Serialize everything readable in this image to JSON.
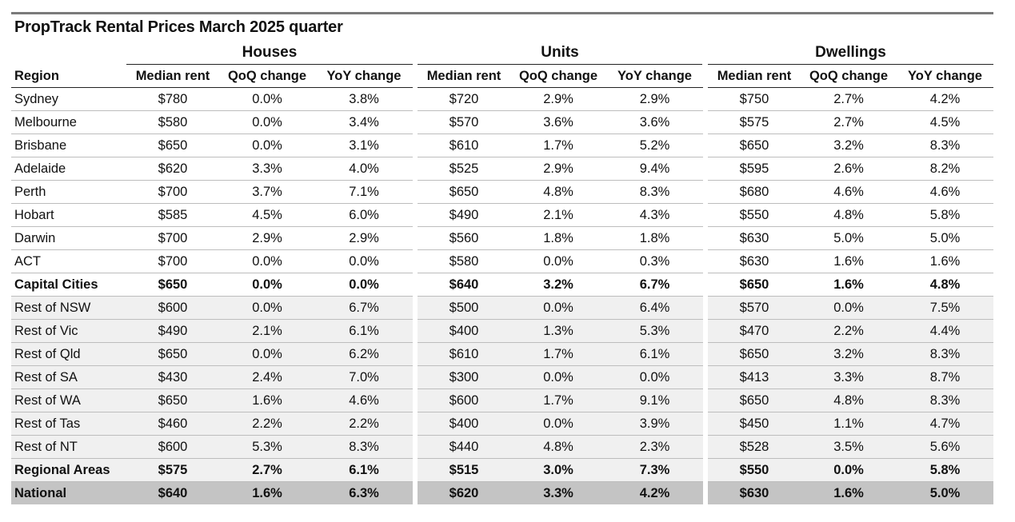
{
  "title": "PropTrack Rental Prices March 2025 quarter",
  "groups": [
    "Houses",
    "Units",
    "Dwellings"
  ],
  "columns": {
    "region": "Region",
    "median": "Median rent",
    "qoq": "QoQ change",
    "yoy": "YoY change"
  },
  "rows": [
    {
      "region": "Sydney",
      "h": [
        "$780",
        "0.0%",
        "3.8%"
      ],
      "u": [
        "$720",
        "2.9%",
        "2.9%"
      ],
      "d": [
        "$750",
        "2.7%",
        "4.2%"
      ]
    },
    {
      "region": "Melbourne",
      "h": [
        "$580",
        "0.0%",
        "3.4%"
      ],
      "u": [
        "$570",
        "3.6%",
        "3.6%"
      ],
      "d": [
        "$575",
        "2.7%",
        "4.5%"
      ]
    },
    {
      "region": "Brisbane",
      "h": [
        "$650",
        "0.0%",
        "3.1%"
      ],
      "u": [
        "$610",
        "1.7%",
        "5.2%"
      ],
      "d": [
        "$650",
        "3.2%",
        "8.3%"
      ]
    },
    {
      "region": "Adelaide",
      "h": [
        "$620",
        "3.3%",
        "4.0%"
      ],
      "u": [
        "$525",
        "2.9%",
        "9.4%"
      ],
      "d": [
        "$595",
        "2.6%",
        "8.2%"
      ]
    },
    {
      "region": "Perth",
      "h": [
        "$700",
        "3.7%",
        "7.1%"
      ],
      "u": [
        "$650",
        "4.8%",
        "8.3%"
      ],
      "d": [
        "$680",
        "4.6%",
        "4.6%"
      ]
    },
    {
      "region": "Hobart",
      "h": [
        "$585",
        "4.5%",
        "6.0%"
      ],
      "u": [
        "$490",
        "2.1%",
        "4.3%"
      ],
      "d": [
        "$550",
        "4.8%",
        "5.8%"
      ]
    },
    {
      "region": "Darwin",
      "h": [
        "$700",
        "2.9%",
        "2.9%"
      ],
      "u": [
        "$560",
        "1.8%",
        "1.8%"
      ],
      "d": [
        "$630",
        "5.0%",
        "5.0%"
      ]
    },
    {
      "region": "ACT",
      "h": [
        "$700",
        "0.0%",
        "0.0%"
      ],
      "u": [
        "$580",
        "0.0%",
        "0.3%"
      ],
      "d": [
        "$630",
        "1.6%",
        "1.6%"
      ]
    },
    {
      "region": "Capital Cities",
      "h": [
        "$650",
        "0.0%",
        "0.0%"
      ],
      "u": [
        "$640",
        "3.2%",
        "6.7%"
      ],
      "d": [
        "$650",
        "1.6%",
        "4.8%"
      ],
      "style": "bold"
    },
    {
      "region": "Rest of NSW",
      "h": [
        "$600",
        "0.0%",
        "6.7%"
      ],
      "u": [
        "$500",
        "0.0%",
        "6.4%"
      ],
      "d": [
        "$570",
        "0.0%",
        "7.5%"
      ],
      "style": "shade"
    },
    {
      "region": "Rest of Vic",
      "h": [
        "$490",
        "2.1%",
        "6.1%"
      ],
      "u": [
        "$400",
        "1.3%",
        "5.3%"
      ],
      "d": [
        "$470",
        "2.2%",
        "4.4%"
      ],
      "style": "shade"
    },
    {
      "region": "Rest of Qld",
      "h": [
        "$650",
        "0.0%",
        "6.2%"
      ],
      "u": [
        "$610",
        "1.7%",
        "6.1%"
      ],
      "d": [
        "$650",
        "3.2%",
        "8.3%"
      ],
      "style": "shade"
    },
    {
      "region": "Rest of SA",
      "h": [
        "$430",
        "2.4%",
        "7.0%"
      ],
      "u": [
        "$300",
        "0.0%",
        "0.0%"
      ],
      "d": [
        "$413",
        "3.3%",
        "8.7%"
      ],
      "style": "shade"
    },
    {
      "region": "Rest of WA",
      "h": [
        "$650",
        "1.6%",
        "4.6%"
      ],
      "u": [
        "$600",
        "1.7%",
        "9.1%"
      ],
      "d": [
        "$650",
        "4.8%",
        "8.3%"
      ],
      "style": "shade"
    },
    {
      "region": "Rest of Tas",
      "h": [
        "$460",
        "2.2%",
        "2.2%"
      ],
      "u": [
        "$400",
        "0.0%",
        "3.9%"
      ],
      "d": [
        "$450",
        "1.1%",
        "4.7%"
      ],
      "style": "shade"
    },
    {
      "region": "Rest of NT",
      "h": [
        "$600",
        "5.3%",
        "8.3%"
      ],
      "u": [
        "$440",
        "4.8%",
        "2.3%"
      ],
      "d": [
        "$528",
        "3.5%",
        "5.6%"
      ],
      "style": "shade"
    },
    {
      "region": "Regional Areas",
      "h": [
        "$575",
        "2.7%",
        "6.1%"
      ],
      "u": [
        "$515",
        "3.0%",
        "7.3%"
      ],
      "d": [
        "$550",
        "0.0%",
        "5.8%"
      ],
      "style": "bold shade"
    },
    {
      "region": "National",
      "h": [
        "$640",
        "1.6%",
        "6.3%"
      ],
      "u": [
        "$620",
        "3.3%",
        "4.2%"
      ],
      "d": [
        "$630",
        "1.6%",
        "5.0%"
      ],
      "style": "bold national"
    }
  ],
  "colors": {
    "rule": "#7a7a7a",
    "shade": "#f0f0f0",
    "national": "#c4c4c4"
  }
}
